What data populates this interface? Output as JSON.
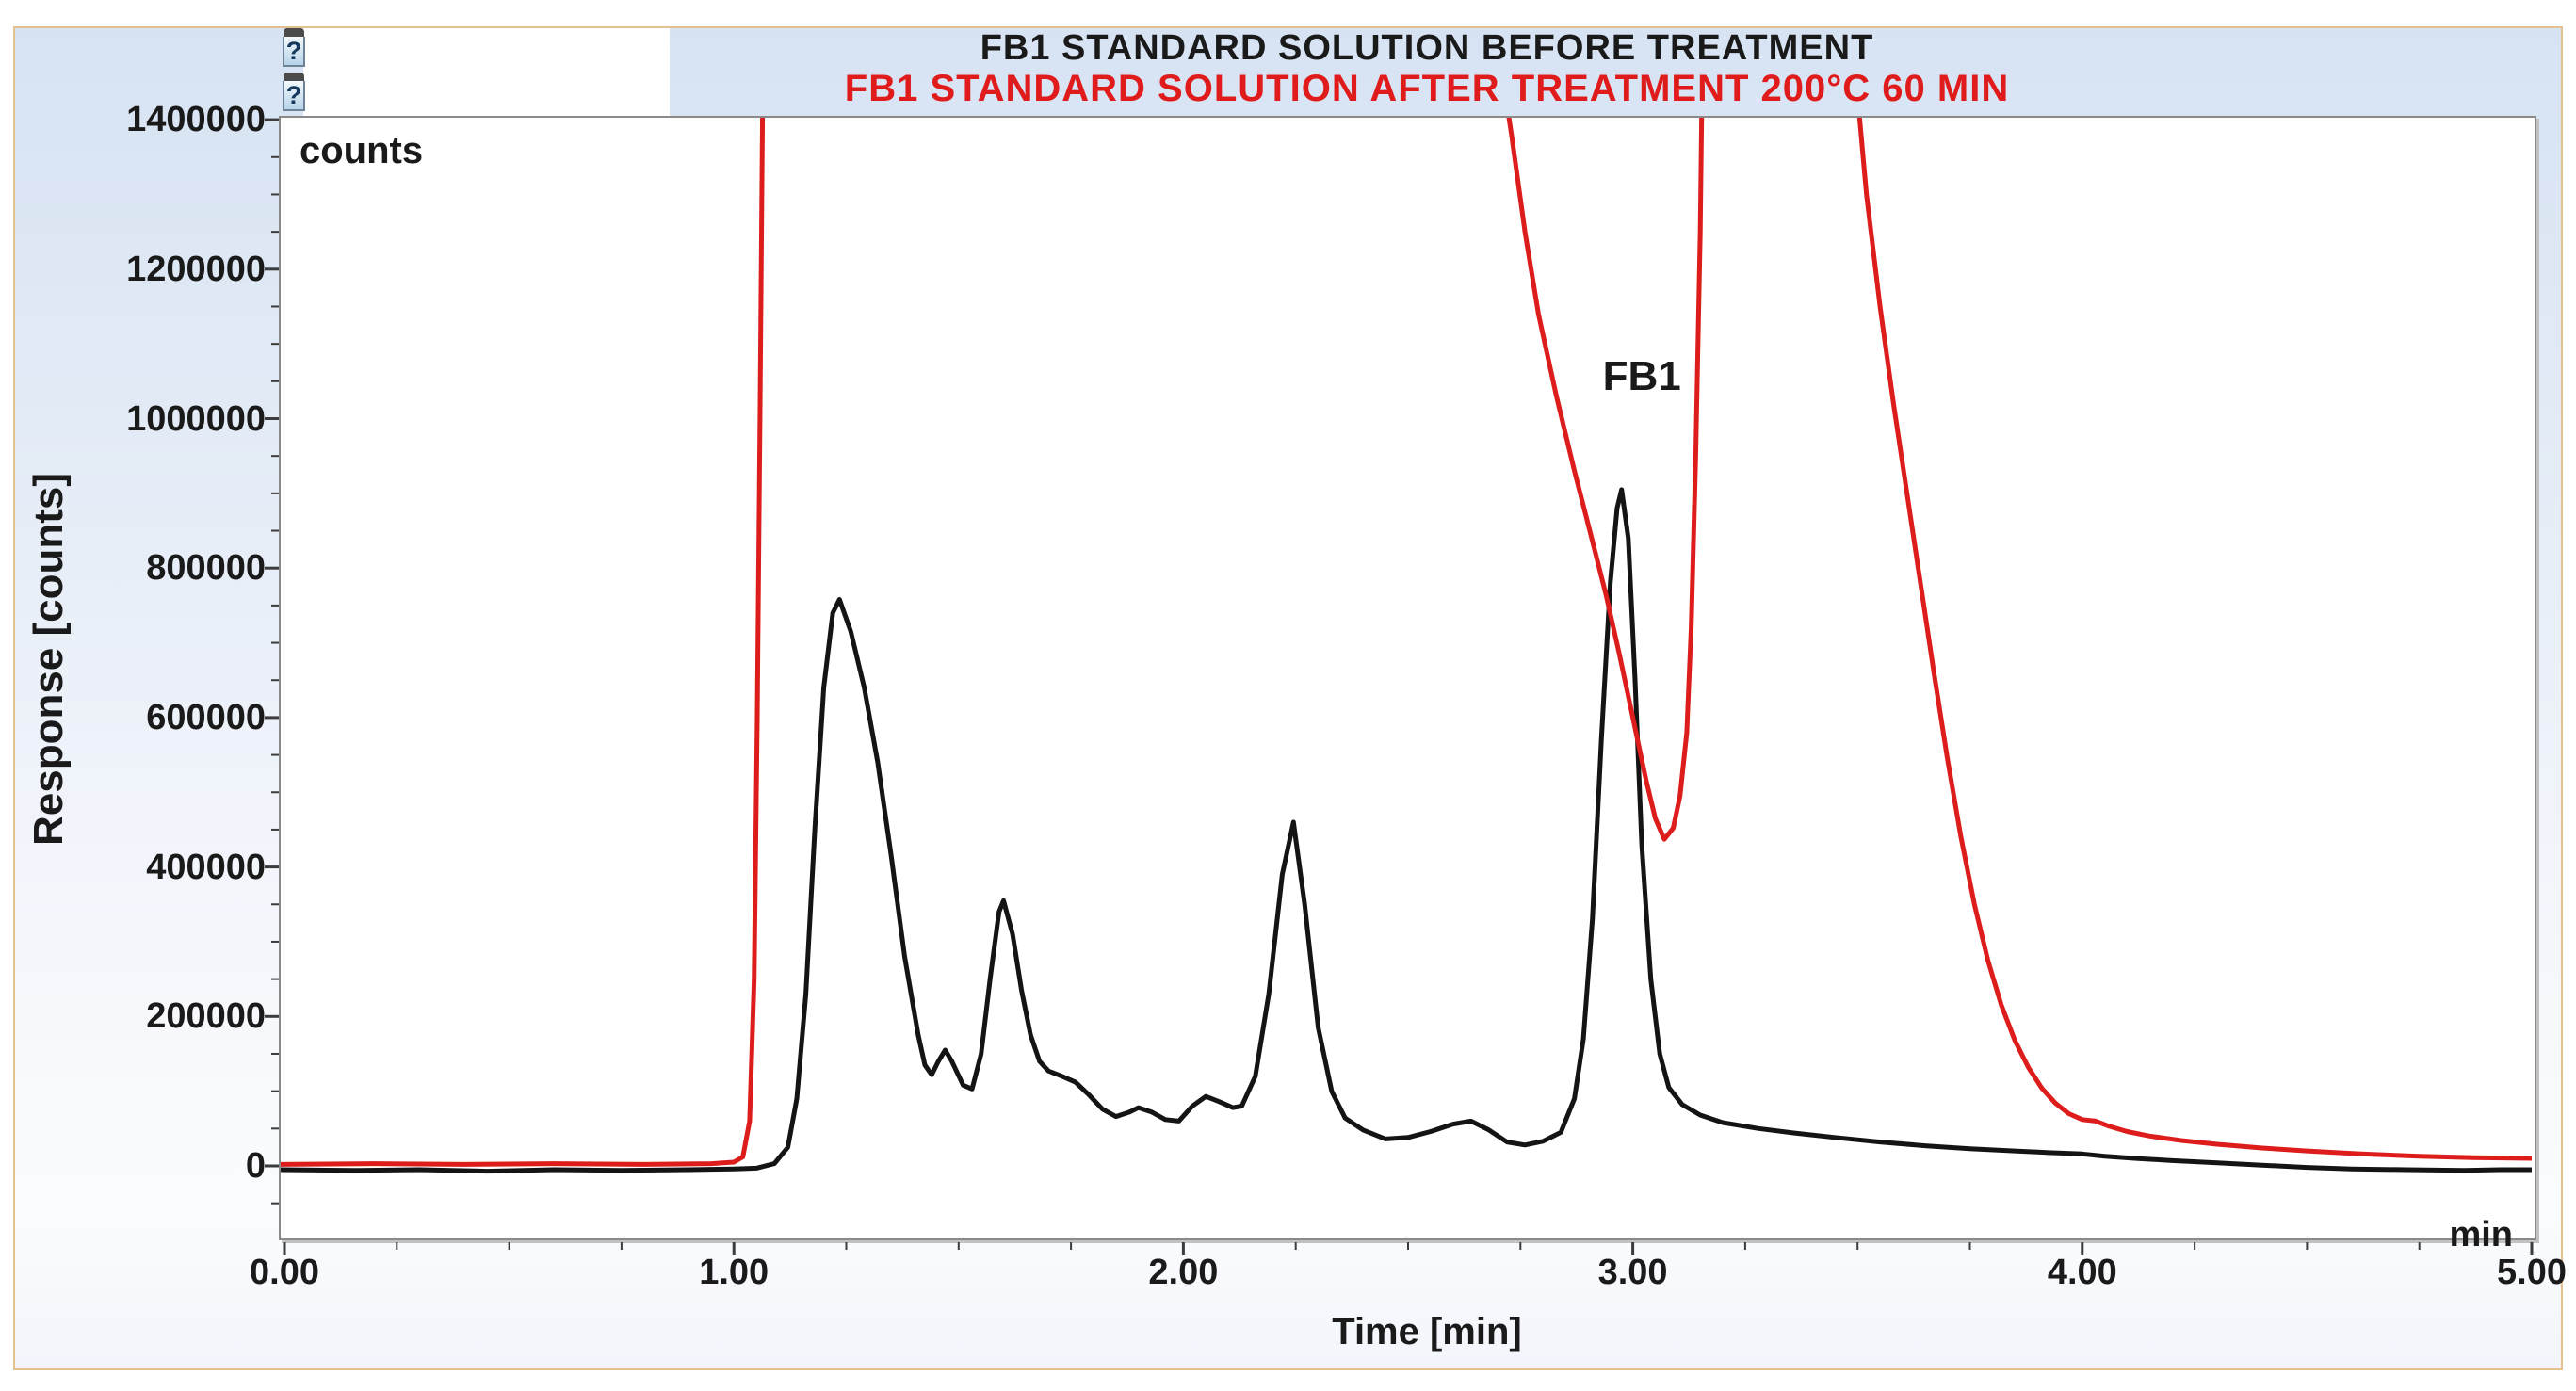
{
  "header": {
    "title_before": "FB1 STANDARD SOLUTION BEFORE TREATMENT",
    "title_after": "FB1 STANDARD SOLUTION AFTER TREATMENT 200°C 60 MIN"
  },
  "icons": {
    "help_glyph": "?"
  },
  "colors": {
    "trace_before": "#141414",
    "trace_after": "#dd1c1c",
    "title_before": "#1a1a1a",
    "title_after": "#e01b1b",
    "frame_border": "#e3c28f",
    "plot_border": "#8a8a8a",
    "tick": "#3c3c3c",
    "panel_top": "#d7e3f3",
    "panel_bottom": "#fbfcfe"
  },
  "chart_data": {
    "type": "line",
    "xlabel": "Time [min]",
    "x_unit_label": "min",
    "ylabel": "Response [counts]",
    "y_unit_label": "counts",
    "xlim": [
      0,
      5
    ],
    "ylim": [
      0,
      1400000
    ],
    "grid": false,
    "legend_position": "none",
    "x_ticks": [
      {
        "value": 0,
        "label": "0.00"
      },
      {
        "value": 1,
        "label": "1.00"
      },
      {
        "value": 2,
        "label": "2.00"
      },
      {
        "value": 3,
        "label": "3.00"
      },
      {
        "value": 4,
        "label": "4.00"
      },
      {
        "value": 5,
        "label": "5.00"
      }
    ],
    "x_minor_step": 0.25,
    "y_ticks": [
      {
        "value": 0,
        "label": "0"
      },
      {
        "value": 200000,
        "label": "200000"
      },
      {
        "value": 400000,
        "label": "400000"
      },
      {
        "value": 600000,
        "label": "600000"
      },
      {
        "value": 800000,
        "label": "800000"
      },
      {
        "value": 1000000,
        "label": "1000000"
      },
      {
        "value": 1200000,
        "label": "1200000"
      },
      {
        "value": 1400000,
        "label": "1400000"
      }
    ],
    "y_minor_step": 50000,
    "y_major_step": 200000,
    "annotations": [
      {
        "text": "FB1",
        "x": 3.02,
        "y": 1056000
      }
    ],
    "series": [
      {
        "name": "before-treatment",
        "color": "#141414",
        "points": [
          [
            -0.01,
            -5000
          ],
          [
            0.15,
            -6000
          ],
          [
            0.3,
            -5000
          ],
          [
            0.45,
            -7000
          ],
          [
            0.6,
            -5000
          ],
          [
            0.75,
            -6000
          ],
          [
            0.9,
            -5000
          ],
          [
            1.0,
            -4000
          ],
          [
            1.05,
            -3000
          ],
          [
            1.09,
            3000
          ],
          [
            1.12,
            25000
          ],
          [
            1.14,
            90000
          ],
          [
            1.16,
            230000
          ],
          [
            1.18,
            450000
          ],
          [
            1.2,
            640000
          ],
          [
            1.22,
            740000
          ],
          [
            1.235,
            758000
          ],
          [
            1.26,
            715000
          ],
          [
            1.29,
            640000
          ],
          [
            1.32,
            540000
          ],
          [
            1.35,
            415000
          ],
          [
            1.38,
            280000
          ],
          [
            1.41,
            175000
          ],
          [
            1.425,
            135000
          ],
          [
            1.44,
            122000
          ],
          [
            1.455,
            140000
          ],
          [
            1.47,
            155000
          ],
          [
            1.485,
            140000
          ],
          [
            1.51,
            108000
          ],
          [
            1.53,
            103000
          ],
          [
            1.55,
            150000
          ],
          [
            1.57,
            250000
          ],
          [
            1.59,
            340000
          ],
          [
            1.6,
            355000
          ],
          [
            1.62,
            310000
          ],
          [
            1.64,
            235000
          ],
          [
            1.66,
            175000
          ],
          [
            1.68,
            140000
          ],
          [
            1.7,
            127000
          ],
          [
            1.73,
            120000
          ],
          [
            1.76,
            112000
          ],
          [
            1.79,
            95000
          ],
          [
            1.82,
            76000
          ],
          [
            1.85,
            66000
          ],
          [
            1.88,
            72000
          ],
          [
            1.9,
            78000
          ],
          [
            1.93,
            72000
          ],
          [
            1.96,
            62000
          ],
          [
            1.99,
            60000
          ],
          [
            2.02,
            80000
          ],
          [
            2.05,
            93000
          ],
          [
            2.08,
            86000
          ],
          [
            2.11,
            78000
          ],
          [
            2.13,
            80000
          ],
          [
            2.16,
            120000
          ],
          [
            2.19,
            230000
          ],
          [
            2.22,
            390000
          ],
          [
            2.245,
            460000
          ],
          [
            2.27,
            350000
          ],
          [
            2.3,
            185000
          ],
          [
            2.33,
            100000
          ],
          [
            2.36,
            64000
          ],
          [
            2.4,
            48000
          ],
          [
            2.45,
            36000
          ],
          [
            2.5,
            38000
          ],
          [
            2.55,
            46000
          ],
          [
            2.6,
            56000
          ],
          [
            2.64,
            60000
          ],
          [
            2.68,
            48000
          ],
          [
            2.72,
            32000
          ],
          [
            2.76,
            28000
          ],
          [
            2.8,
            33000
          ],
          [
            2.84,
            45000
          ],
          [
            2.87,
            90000
          ],
          [
            2.89,
            170000
          ],
          [
            2.91,
            330000
          ],
          [
            2.93,
            570000
          ],
          [
            2.95,
            780000
          ],
          [
            2.965,
            880000
          ],
          [
            2.975,
            905000
          ],
          [
            2.99,
            840000
          ],
          [
            3.005,
            650000
          ],
          [
            3.02,
            430000
          ],
          [
            3.04,
            250000
          ],
          [
            3.06,
            150000
          ],
          [
            3.08,
            105000
          ],
          [
            3.11,
            82000
          ],
          [
            3.15,
            68000
          ],
          [
            3.2,
            58000
          ],
          [
            3.28,
            50000
          ],
          [
            3.36,
            44000
          ],
          [
            3.45,
            38000
          ],
          [
            3.55,
            32000
          ],
          [
            3.65,
            27000
          ],
          [
            3.75,
            23000
          ],
          [
            3.85,
            20000
          ],
          [
            3.92,
            18000
          ],
          [
            4.0,
            16000
          ],
          [
            4.05,
            13000
          ],
          [
            4.12,
            10000
          ],
          [
            4.2,
            7000
          ],
          [
            4.3,
            4000
          ],
          [
            4.4,
            1000
          ],
          [
            4.5,
            -2000
          ],
          [
            4.6,
            -4000
          ],
          [
            4.72,
            -5000
          ],
          [
            4.85,
            -6000
          ],
          [
            4.93,
            -5000
          ],
          [
            5.01,
            -5000
          ]
        ]
      },
      {
        "name": "after-treatment",
        "color": "#dd1c1c",
        "points": [
          [
            -0.01,
            2000
          ],
          [
            0.2,
            3000
          ],
          [
            0.4,
            2000
          ],
          [
            0.6,
            3000
          ],
          [
            0.8,
            2000
          ],
          [
            0.95,
            3000
          ],
          [
            1.0,
            5000
          ],
          [
            1.02,
            12000
          ],
          [
            1.035,
            60000
          ],
          [
            1.045,
            250000
          ],
          [
            1.052,
            600000
          ],
          [
            1.058,
            1000000
          ],
          [
            1.065,
            1500000
          ],
          [
            2.7,
            1500000
          ],
          [
            2.73,
            1380000
          ],
          [
            2.76,
            1250000
          ],
          [
            2.79,
            1140000
          ],
          [
            2.83,
            1030000
          ],
          [
            2.87,
            930000
          ],
          [
            2.9,
            860000
          ],
          [
            2.94,
            765000
          ],
          [
            2.97,
            685000
          ],
          [
            3.0,
            600000
          ],
          [
            3.03,
            515000
          ],
          [
            3.05,
            465000
          ],
          [
            3.07,
            437000
          ],
          [
            3.09,
            452000
          ],
          [
            3.105,
            495000
          ],
          [
            3.12,
            580000
          ],
          [
            3.13,
            720000
          ],
          [
            3.14,
            950000
          ],
          [
            3.15,
            1250000
          ],
          [
            3.155,
            1500000
          ],
          [
            3.49,
            1500000
          ],
          [
            3.52,
            1300000
          ],
          [
            3.55,
            1150000
          ],
          [
            3.58,
            1020000
          ],
          [
            3.61,
            900000
          ],
          [
            3.64,
            780000
          ],
          [
            3.67,
            660000
          ],
          [
            3.7,
            545000
          ],
          [
            3.73,
            440000
          ],
          [
            3.76,
            350000
          ],
          [
            3.79,
            275000
          ],
          [
            3.82,
            215000
          ],
          [
            3.85,
            168000
          ],
          [
            3.88,
            132000
          ],
          [
            3.91,
            104000
          ],
          [
            3.94,
            84000
          ],
          [
            3.97,
            70000
          ],
          [
            4.0,
            62000
          ],
          [
            4.03,
            60000
          ],
          [
            4.06,
            53000
          ],
          [
            4.1,
            46000
          ],
          [
            4.15,
            40000
          ],
          [
            4.22,
            34000
          ],
          [
            4.3,
            29000
          ],
          [
            4.4,
            24000
          ],
          [
            4.5,
            20000
          ],
          [
            4.62,
            16000
          ],
          [
            4.75,
            13000
          ],
          [
            4.87,
            11000
          ],
          [
            5.01,
            10000
          ]
        ]
      }
    ]
  }
}
